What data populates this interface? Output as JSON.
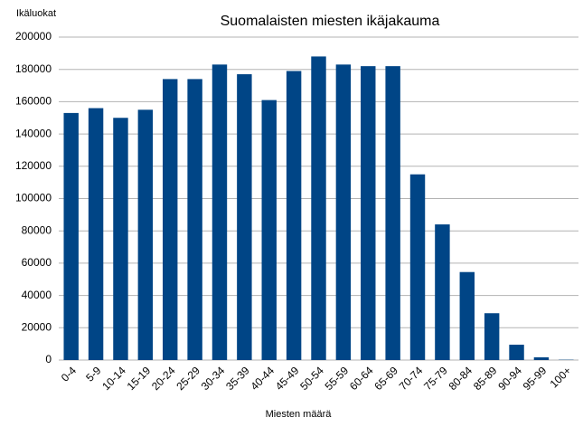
{
  "chart_data": {
    "type": "bar",
    "title": "Suomalaisten miesten ikäjakauma",
    "y_label": "Ikäluokat",
    "x_label": "Miesten määrä",
    "categories": [
      "0-4",
      "5-9",
      "10-14",
      "15-19",
      "20-24",
      "25-29",
      "30-34",
      "35-39",
      "40-44",
      "45-49",
      "50-54",
      "55-59",
      "60-64",
      "65-69",
      "70-74",
      "75-79",
      "80-84",
      "85-89",
      "90-94",
      "95-99",
      "100+"
    ],
    "values": [
      153000,
      156000,
      150000,
      155000,
      174000,
      174000,
      183000,
      177000,
      161000,
      179000,
      188000,
      183000,
      182000,
      182000,
      115000,
      84000,
      54500,
      29000,
      9500,
      1700,
      200
    ],
    "color": "#004586",
    "ylim": [
      0,
      200000
    ],
    "yticks": [
      0,
      20000,
      40000,
      60000,
      80000,
      100000,
      120000,
      140000,
      160000,
      180000,
      200000
    ],
    "grid": true
  }
}
